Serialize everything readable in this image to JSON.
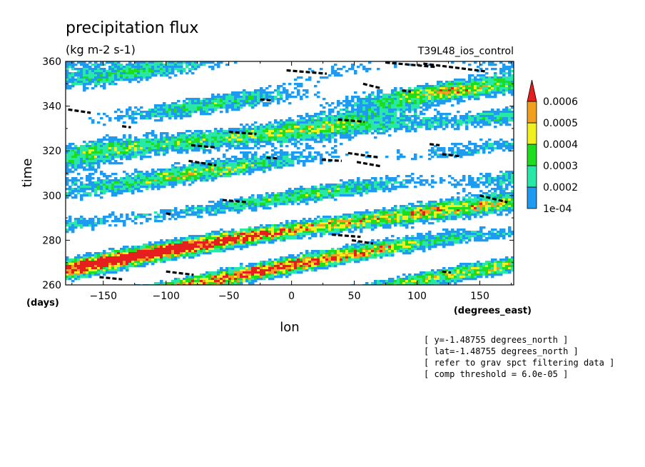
{
  "chart_data": {
    "type": "heatmap",
    "title": "precipitation flux",
    "subtitle": "(kg m-2 s-1)",
    "run_label": "T39L48_ios_control",
    "xlabel": "lon",
    "x_units": "(degrees_east)",
    "ylabel": "time",
    "y_units": "(days)",
    "xlim": [
      -180,
      177
    ],
    "ylim": [
      260,
      360
    ],
    "xticks": [
      -150,
      -100,
      -50,
      0,
      50,
      100,
      150
    ],
    "yticks": [
      260,
      280,
      300,
      320,
      340,
      360
    ],
    "colorbar": {
      "labels": [
        "0.0006",
        "0.0005",
        "0.0004",
        "0.0003",
        "0.0002",
        "1e-04"
      ],
      "levels": [
        0.0001,
        0.0002,
        0.0003,
        0.0004,
        0.0005,
        0.0006
      ],
      "colors": [
        "#1e9bf0",
        "#28e8a8",
        "#1edc1e",
        "#f0f01e",
        "#f0a01e",
        "#e61e1e"
      ],
      "extend": "max"
    },
    "overlay_segments": [
      {
        "x": [
          -178,
          -160
        ],
        "y": [
          338.5,
          337
        ]
      },
      {
        "x": [
          -135,
          -128
        ],
        "y": [
          331,
          330.5
        ]
      },
      {
        "x": [
          -100,
          -78
        ],
        "y": [
          266,
          264.5
        ]
      },
      {
        "x": [
          -153,
          -135
        ],
        "y": [
          263.5,
          262.5
        ]
      },
      {
        "x": [
          -80,
          -60
        ],
        "y": [
          322.5,
          321.5
        ]
      },
      {
        "x": [
          -82,
          -60
        ],
        "y": [
          315.5,
          313.5
        ]
      },
      {
        "x": [
          -50,
          -28
        ],
        "y": [
          328.5,
          327.5
        ]
      },
      {
        "x": [
          -55,
          -35
        ],
        "y": [
          298,
          297
        ]
      },
      {
        "x": [
          -25,
          -15
        ],
        "y": [
          343,
          342.5
        ]
      },
      {
        "x": [
          -4,
          28
        ],
        "y": [
          356,
          354.5
        ]
      },
      {
        "x": [
          24,
          40
        ],
        "y": [
          316,
          315.5
        ]
      },
      {
        "x": [
          37,
          58
        ],
        "y": [
          334,
          333
        ]
      },
      {
        "x": [
          45,
          70
        ],
        "y": [
          319,
          317
        ]
      },
      {
        "x": [
          52,
          72
        ],
        "y": [
          315,
          313
        ]
      },
      {
        "x": [
          57,
          71
        ],
        "y": [
          350,
          348
        ]
      },
      {
        "x": [
          32,
          55
        ],
        "y": [
          282.5,
          281.5
        ]
      },
      {
        "x": [
          48,
          65
        ],
        "y": [
          280,
          278.5
        ]
      },
      {
        "x": [
          75,
          115
        ],
        "y": [
          359.5,
          357.5
        ]
      },
      {
        "x": [
          105,
          155
        ],
        "y": [
          359,
          355.5
        ]
      },
      {
        "x": [
          88,
          95
        ],
        "y": [
          347,
          346.5
        ]
      },
      {
        "x": [
          110,
          118
        ],
        "y": [
          323,
          322.5
        ]
      },
      {
        "x": [
          120,
          135
        ],
        "y": [
          318.5,
          317.5
        ]
      },
      {
        "x": [
          150,
          172
        ],
        "y": [
          300,
          297
        ]
      },
      {
        "x": [
          -100,
          -95
        ],
        "y": [
          292,
          291.5
        ]
      },
      {
        "x": [
          120,
          127
        ],
        "y": [
          266,
          265.5
        ]
      },
      {
        "x": [
          -20,
          -10
        ],
        "y": [
          317,
          316.5
        ]
      }
    ]
  },
  "annotations": [
    "[ y=-1.48755 degrees_north ]",
    "[ lat=-1.48755 degrees_north ]",
    "[ refer to grav spct filtering data ]",
    "[ comp threshold = 6.0e-05 ]"
  ]
}
